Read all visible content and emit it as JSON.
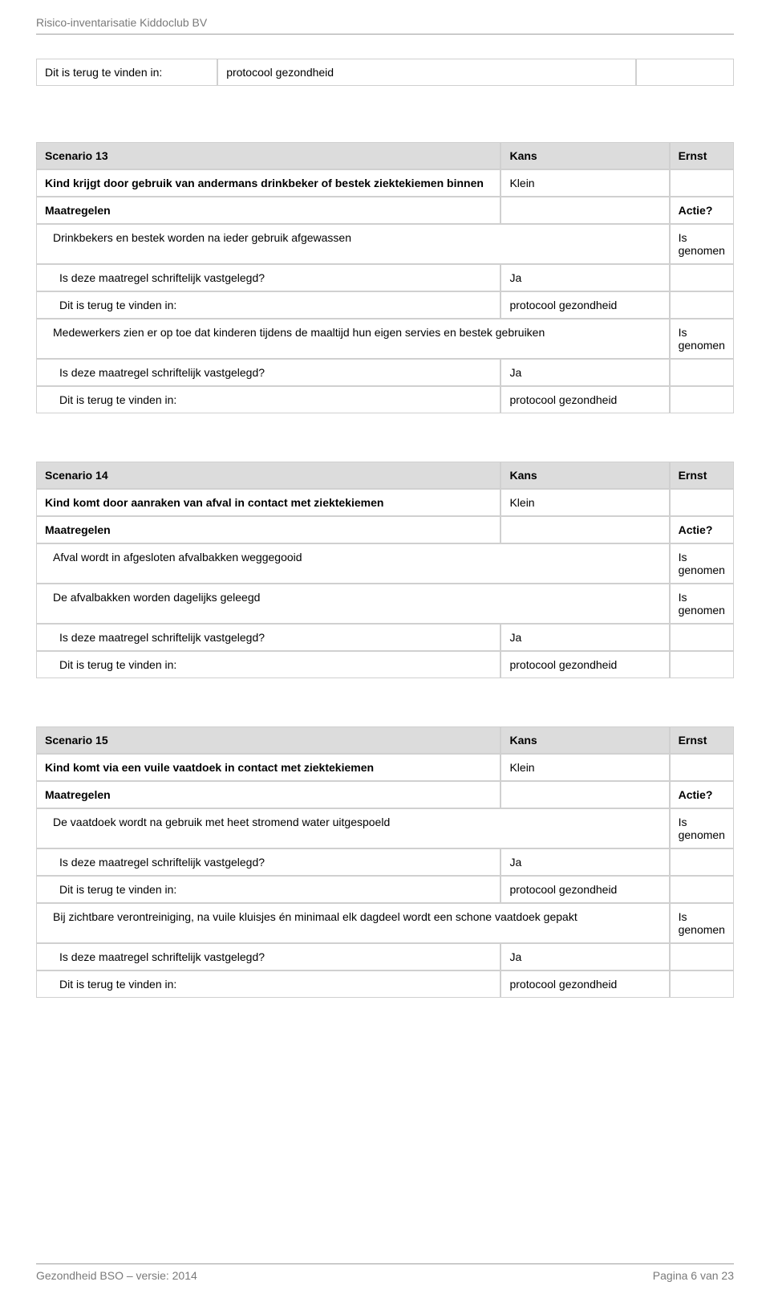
{
  "header": {
    "title": "Risico-inventarisatie Kiddoclub BV"
  },
  "topTable": {
    "label": "Dit is terug te vinden in:",
    "value": "protocool gezondheid"
  },
  "labels": {
    "kans": "Kans",
    "ernst": "Ernst",
    "maatregelen": "Maatregelen",
    "actie": "Actie?",
    "isDeze": "Is deze maatregel schriftelijk vastgelegd?",
    "ditIsTerug": "Dit is terug te vinden in:",
    "ja": "Ja",
    "protocool": "protocool gezondheid",
    "isGenomen": "Is genomen",
    "klein": "Klein"
  },
  "scenarios": [
    {
      "title": "Scenario 13",
      "description": "Kind krijgt door gebruik van andermans drinkbeker of bestek ziektekiemen binnen",
      "kans": "Klein",
      "ernst": "",
      "measures": [
        {
          "text": "Drinkbekers en bestek worden na ieder gebruik afgewassen",
          "status": "Is genomen",
          "subs": [
            {
              "label": "Is deze maatregel schriftelijk vastgelegd?",
              "value": "Ja"
            },
            {
              "label": "Dit is terug te vinden in:",
              "value": "protocool gezondheid"
            }
          ]
        },
        {
          "text": "Medewerkers zien er op toe dat kinderen tijdens de maaltijd hun eigen servies en bestek gebruiken",
          "status": "Is genomen",
          "subs": [
            {
              "label": "Is deze maatregel schriftelijk vastgelegd?",
              "value": "Ja"
            },
            {
              "label": "Dit is terug te vinden in:",
              "value": "protocool gezondheid"
            }
          ]
        }
      ]
    },
    {
      "title": "Scenario 14",
      "description": "Kind komt door aanraken van afval in contact met ziektekiemen",
      "kans": "Klein",
      "ernst": "",
      "measures": [
        {
          "text": "Afval wordt in afgesloten afvalbakken weggegooid",
          "status": "Is genomen",
          "subs": []
        },
        {
          "text": "De afvalbakken worden dagelijks geleegd",
          "status": "Is genomen",
          "subs": [
            {
              "label": "Is deze maatregel schriftelijk vastgelegd?",
              "value": "Ja"
            },
            {
              "label": "Dit is terug te vinden in:",
              "value": "protocool gezondheid"
            }
          ]
        }
      ]
    },
    {
      "title": "Scenario 15",
      "description": "Kind komt via een vuile vaatdoek in contact met ziektekiemen",
      "kans": "Klein",
      "ernst": "",
      "measures": [
        {
          "text": "De vaatdoek wordt na gebruik met heet stromend water uitgespoeld",
          "status": "Is genomen",
          "subs": [
            {
              "label": "Is deze maatregel schriftelijk vastgelegd?",
              "value": "Ja"
            },
            {
              "label": "Dit is terug te vinden in:",
              "value": "protocool gezondheid"
            }
          ]
        },
        {
          "text": "Bij zichtbare verontreiniging, na vuile kluisjes én minimaal elk dagdeel wordt een schone vaatdoek gepakt",
          "status": "Is genomen",
          "subs": [
            {
              "label": "Is deze maatregel schriftelijk vastgelegd?",
              "value": "Ja"
            },
            {
              "label": "Dit is terug te vinden in:",
              "value": "protocool gezondheid"
            }
          ]
        }
      ]
    }
  ],
  "footer": {
    "left": "Gezondheid BSO – versie: 2014",
    "right": "Pagina 6 van 23"
  }
}
